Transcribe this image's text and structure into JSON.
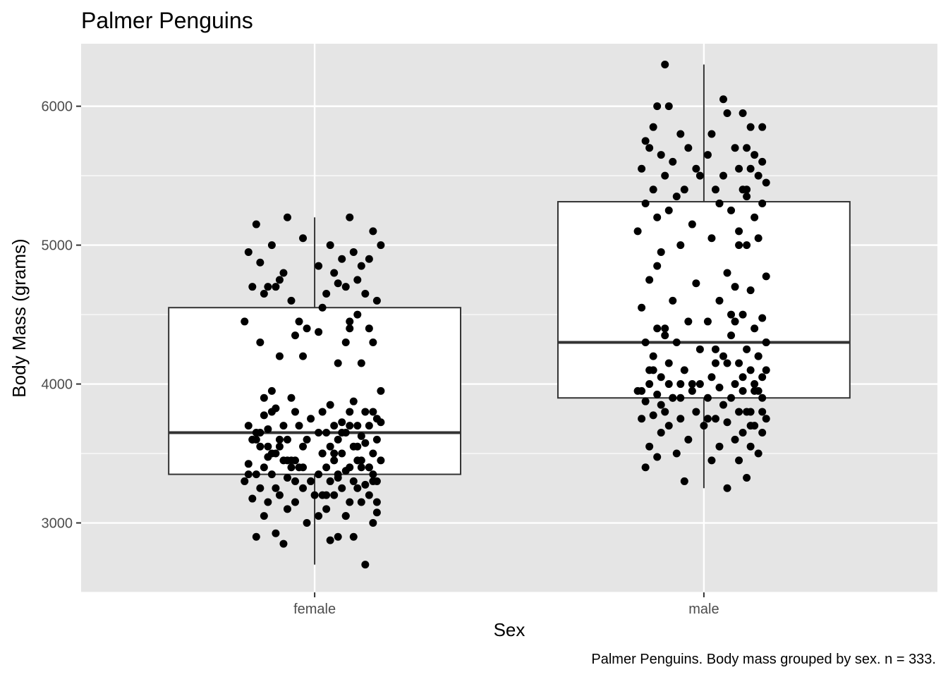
{
  "chart_data": {
    "type": "box",
    "title": "Palmer Penguins",
    "xlabel": "Sex",
    "ylabel": "Body Mass (grams)",
    "caption": "Palmer Penguins. Body mass grouped by sex. n = 333.",
    "categories": [
      "female",
      "male"
    ],
    "ylim": [
      2500,
      6450
    ],
    "yticks": [
      3000,
      4000,
      5000,
      6000
    ],
    "grid": true,
    "boxes": [
      {
        "category": "female",
        "whisker_low": 2700,
        "q1": 3350,
        "median": 3650,
        "q3": 4550,
        "whisker_high": 5200
      },
      {
        "category": "male",
        "whisker_low": 3250,
        "q1": 3900,
        "median": 4300,
        "q3": 5312.5,
        "whisker_high": 6300
      }
    ],
    "points": [
      {
        "category": "female",
        "offsets": [
          -0.07,
          -0.15,
          0.09,
          0.15,
          -0.11,
          -0.17,
          0.04,
          0.1,
          0.17,
          -0.03,
          0.07,
          0.14,
          -0.14,
          0.01,
          0.12,
          -0.08,
          0.05,
          -0.09,
          0.11,
          -0.12,
          0.08,
          0.06,
          -0.1,
          -0.16,
          0.03,
          0.13,
          -0.06,
          0.16,
          -0.13,
          0.02,
          0.11,
          -0.04,
          0.09,
          -0.02,
          0.14,
          0.01,
          -0.18,
          -0.05,
          0.08,
          0.15,
          -0.14,
          -0.09,
          0.06,
          0.12,
          -0.03,
          -0.11,
          0.17,
          -0.06,
          0.1,
          0.04,
          -0.1,
          0.13,
          -0.05,
          0.09,
          0.02,
          -0.13,
          0.16,
          -0.01,
          0.07,
          -0.17,
          0.05,
          -0.08,
          0.11,
          0.14,
          -0.12,
          0.03,
          -0.15,
          0.08,
          0.01,
          0.12,
          -0.07,
          0.16,
          -0.02,
          -0.16,
          0.06,
          0.13,
          -0.09,
          0.04,
          0.1,
          -0.14,
          -0.03,
          0.15,
          -0.1,
          0.07,
          0.02,
          -0.12,
          0.11,
          -0.05,
          0.17,
          -0.08,
          0.05,
          -0.17,
          0.09,
          0.14,
          -0.04,
          -0.13,
          0.03,
          0.12,
          -0.06,
          0.08,
          0.01,
          -0.11,
          0.15,
          -0.15,
          0.06,
          -0.07,
          0.1,
          0.16,
          -0.01,
          -0.18,
          0.04,
          0.13,
          -0.1,
          0.07,
          -0.03,
          -0.14,
          0.11,
          0.02,
          -0.09,
          0.14,
          0.05,
          -0.16,
          -0.05,
          0.09,
          0.12,
          -0.12,
          0.03,
          -0.07,
          0.16,
          0.01,
          -0.13,
          0.08,
          -0.02,
          0.15,
          -0.1,
          0.06,
          -0.15,
          0.1,
          0.04,
          -0.08,
          0.13,
          -0.04,
          0.17,
          -0.11,
          0.02,
          0.07,
          -0.17,
          0.11,
          -0.06,
          0.14,
          0.0,
          -0.13,
          0.09,
          -0.09,
          0.05,
          0.15,
          -0.03,
          -0.16,
          0.12,
          0.03,
          -0.12,
          0.08,
          -0.05,
          0.16,
          -0.14,
          0.06
        ],
        "values": [
          5200,
          5150,
          5200,
          5100,
          5000,
          4950,
          5000,
          4950,
          5000,
          5050,
          4900,
          4900,
          4875,
          4850,
          4850,
          4800,
          4800,
          4750,
          4750,
          4700,
          4700,
          4725,
          4700,
          4700,
          4650,
          4650,
          4600,
          4600,
          4650,
          4550,
          4500,
          4450,
          4450,
          4400,
          4400,
          4375,
          4450,
          4350,
          4300,
          4300,
          4300,
          4200,
          4150,
          4150,
          4200,
          3950,
          3950,
          3900,
          3875,
          3850,
          3825,
          3800,
          3800,
          3800,
          3800,
          3775,
          3750,
          3750,
          3725,
          3700,
          3700,
          3700,
          3700,
          3700,
          3675,
          3650,
          3650,
          3650,
          3650,
          3625,
          3600,
          3600,
          3600,
          3600,
          3600,
          3575,
          3550,
          3550,
          3550,
          3550,
          3550,
          3500,
          3500,
          3500,
          3500,
          3475,
          3450,
          3450,
          3450,
          3450,
          3450,
          3425,
          3400,
          3400,
          3400,
          3400,
          3400,
          3400,
          3400,
          3375,
          3350,
          3350,
          3350,
          3350,
          3325,
          3325,
          3300,
          3300,
          3300,
          3300,
          3300,
          3275,
          3250,
          3250,
          3250,
          3250,
          3250,
          3200,
          3200,
          3200,
          3200,
          3175,
          3150,
          3150,
          3150,
          3150,
          3100,
          3100,
          3075,
          3050,
          3050,
          3050,
          3000,
          3000,
          2925,
          2900,
          2900,
          2900,
          2875,
          2850,
          2700,
          3700,
          3725,
          3800,
          3500,
          3650,
          3350,
          3550,
          3450,
          3400,
          3200,
          3900,
          3700,
          3600,
          3500,
          3300,
          3400,
          3600,
          3450,
          3200,
          3550,
          3050,
          3300,
          3150,
          3650,
          3350,
          3450,
          3600,
          4400,
          3800,
          3500
        ]
      },
      {
        "category": "male",
        "offsets": [
          -0.1,
          0.05,
          -0.12,
          -0.09,
          0.1,
          0.06,
          -0.13,
          0.12,
          0.15,
          -0.06,
          0.02,
          -0.15,
          0.08,
          -0.14,
          -0.04,
          0.11,
          -0.11,
          0.13,
          0.01,
          -0.08,
          0.15,
          -0.02,
          0.09,
          0.12,
          -0.16,
          0.05,
          0.14,
          -0.1,
          -0.01,
          0.16,
          -0.05,
          0.03,
          0.1,
          -0.13,
          -0.07,
          0.11,
          -0.15,
          0.04,
          0.15,
          -0.09,
          0.07,
          -0.12,
          0.13,
          -0.03,
          0.09,
          -0.17,
          0.02,
          0.14,
          -0.06,
          0.11,
          -0.11,
          0.06,
          0.16,
          -0.14,
          -0.02,
          0.08,
          0.12,
          -0.08,
          0.04,
          -0.16,
          0.1,
          0.15,
          -0.04,
          0.01,
          -0.12,
          0.13,
          -0.1,
          0.07,
          0.16,
          -0.07,
          -0.15,
          0.03,
          0.11,
          -0.01,
          0.14,
          -0.13,
          0.06,
          0.09,
          -0.09,
          0.12,
          -0.05,
          0.16,
          -0.11,
          0.02,
          0.15,
          -0.14,
          0.08,
          -0.06,
          0.13,
          0.04,
          -0.17,
          0.1,
          -0.03,
          0.14,
          -0.12,
          0.07,
          0.01,
          -0.08,
          0.15,
          -0.15,
          0.05,
          0.11,
          -0.1,
          -0.02,
          0.12,
          0.09,
          -0.13,
          0.03,
          -0.06,
          0.16,
          -0.16,
          0.06,
          0.13,
          -0.09,
          0.0,
          0.1,
          -0.11,
          0.15,
          -0.04,
          0.08,
          -0.14,
          0.12,
          0.04,
          -0.07,
          0.14,
          -0.12,
          0.02,
          0.09,
          -0.15,
          0.11,
          -0.05,
          0.06,
          0.16,
          -0.1,
          -0.01,
          0.13,
          -0.13,
          0.07,
          0.03,
          -0.08,
          0.1,
          -0.16,
          0.15,
          -0.03,
          0.05,
          -0.11,
          0.12,
          0.08,
          -0.06,
          -0.14,
          0.01,
          0.14,
          -0.09,
          0.11,
          0.04,
          -0.12,
          0.09,
          -0.17,
          0.06,
          0.13,
          -0.04,
          0.16,
          -0.1,
          0.02,
          -0.07
        ],
        "values": [
          6300,
          6050,
          6000,
          6000,
          5950,
          5950,
          5850,
          5850,
          5850,
          5800,
          5800,
          5750,
          5700,
          5700,
          5700,
          5700,
          5650,
          5650,
          5650,
          5600,
          5600,
          5550,
          5550,
          5550,
          5550,
          5500,
          5500,
          5500,
          5500,
          5450,
          5400,
          5400,
          5400,
          5400,
          5350,
          5350,
          5300,
          5300,
          5300,
          5250,
          5250,
          5200,
          5200,
          5150,
          5100,
          5100,
          5050,
          5050,
          5000,
          5000,
          4950,
          4800,
          4775,
          4750,
          4725,
          4700,
          4675,
          4600,
          4600,
          4550,
          4500,
          4475,
          4450,
          4450,
          4400,
          4400,
          4400,
          4350,
          4300,
          4300,
          4300,
          4250,
          4250,
          4250,
          4200,
          4200,
          4150,
          4150,
          4150,
          4100,
          4100,
          4100,
          4050,
          4050,
          4050,
          4000,
          4000,
          4000,
          4000,
          3975,
          3950,
          3950,
          3950,
          3950,
          3925,
          3900,
          3900,
          3900,
          3900,
          3875,
          3850,
          3800,
          3800,
          3800,
          3800,
          3800,
          3775,
          3750,
          3750,
          3750,
          3750,
          3725,
          3700,
          3700,
          3700,
          3650,
          3650,
          3650,
          3600,
          3600,
          3550,
          3550,
          3550,
          3500,
          3500,
          3475,
          3450,
          3450,
          3400,
          3325,
          3300,
          3250,
          4300,
          4350,
          4000,
          3950,
          4100,
          4500,
          4150,
          3900,
          4050,
          3950,
          3800,
          4000,
          4200,
          3850,
          3700,
          4450,
          3900,
          4100,
          3750,
          4200,
          4000,
          5400,
          5300,
          4850,
          5000
        ]
      }
    ]
  }
}
